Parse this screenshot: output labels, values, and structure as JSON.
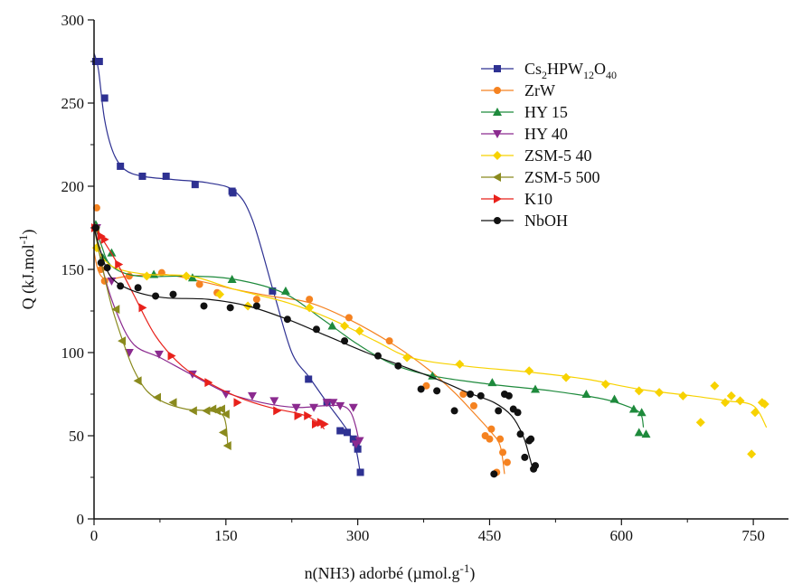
{
  "chart_data": {
    "type": "scatter",
    "title": "",
    "xlabel": "n(NH3) adorbé (µmol.g",
    "xlabel_sup": "-1",
    "xlabel_end": ")",
    "ylabel": "Q (kJ.mol",
    "ylabel_sup": "-1",
    "ylabel_end": ")",
    "xlim": [
      0,
      790
    ],
    "ylim": [
      0,
      300
    ],
    "xticks": [
      0,
      150,
      300,
      450,
      600,
      750
    ],
    "yticks": [
      0,
      50,
      100,
      150,
      200,
      250,
      300
    ],
    "grid": false,
    "legend_position": "top-right",
    "series": [
      {
        "name": "Cs2HPW12O40",
        "name_parts": [
          "Cs",
          "2",
          "HPW",
          "12",
          "O",
          "40"
        ],
        "color": "#2e3192",
        "marker": "square",
        "points": [
          [
            2,
            275
          ],
          [
            6,
            275
          ],
          [
            12,
            253
          ],
          [
            30,
            212
          ],
          [
            55,
            206
          ],
          [
            82,
            206
          ],
          [
            115,
            201
          ],
          [
            157,
            197
          ],
          [
            158,
            196
          ],
          [
            203,
            137
          ],
          [
            244,
            84
          ],
          [
            265,
            70
          ],
          [
            280,
            53
          ],
          [
            288,
            52
          ],
          [
            295,
            48
          ],
          [
            298,
            46
          ],
          [
            300,
            42
          ],
          [
            303,
            28
          ]
        ],
        "curve": [
          [
            0,
            280
          ],
          [
            5,
            270
          ],
          [
            12,
            240
          ],
          [
            22,
            220
          ],
          [
            35,
            210
          ],
          [
            55,
            206
          ],
          [
            90,
            204
          ],
          [
            130,
            202
          ],
          [
            160,
            197
          ],
          [
            180,
            180
          ],
          [
            205,
            135
          ],
          [
            225,
            100
          ],
          [
            245,
            85
          ],
          [
            265,
            70
          ],
          [
            282,
            58
          ],
          [
            292,
            50
          ],
          [
            298,
            42
          ],
          [
            303,
            27
          ]
        ]
      },
      {
        "name": "ZrW",
        "color": "#f58220",
        "marker": "circle",
        "points": [
          [
            3,
            187
          ],
          [
            8,
            150
          ],
          [
            12,
            143
          ],
          [
            40,
            146
          ],
          [
            77,
            148
          ],
          [
            120,
            141
          ],
          [
            140,
            136
          ],
          [
            185,
            132
          ],
          [
            245,
            132
          ],
          [
            290,
            121
          ],
          [
            336,
            107
          ],
          [
            378,
            80
          ],
          [
            420,
            75
          ],
          [
            432,
            68
          ],
          [
            445,
            50
          ],
          [
            450,
            48
          ],
          [
            452,
            54
          ],
          [
            458,
            28
          ],
          [
            462,
            48
          ],
          [
            465,
            40
          ],
          [
            470,
            34
          ]
        ],
        "curve": [
          [
            0,
            160
          ],
          [
            10,
            145
          ],
          [
            40,
            146
          ],
          [
            80,
            147
          ],
          [
            120,
            143
          ],
          [
            160,
            138
          ],
          [
            200,
            134
          ],
          [
            245,
            130
          ],
          [
            290,
            120
          ],
          [
            340,
            105
          ],
          [
            380,
            90
          ],
          [
            410,
            76
          ],
          [
            435,
            62
          ],
          [
            452,
            52
          ],
          [
            462,
            44
          ],
          [
            467,
            27
          ]
        ]
      },
      {
        "name": "HY 15",
        "color": "#1e8a3c",
        "marker": "triangle-up",
        "points": [
          [
            2,
            177
          ],
          [
            10,
            157
          ],
          [
            20,
            160
          ],
          [
            68,
            147
          ],
          [
            112,
            145
          ],
          [
            157,
            144
          ],
          [
            218,
            137
          ],
          [
            271,
            116
          ],
          [
            385,
            86
          ],
          [
            453,
            82
          ],
          [
            502,
            78
          ],
          [
            560,
            75
          ],
          [
            592,
            72
          ],
          [
            614,
            66
          ],
          [
            620,
            52
          ],
          [
            623,
            64
          ],
          [
            628,
            51
          ]
        ],
        "curve": [
          [
            0,
            178
          ],
          [
            8,
            165
          ],
          [
            20,
            152
          ],
          [
            50,
            146
          ],
          [
            110,
            146
          ],
          [
            160,
            144
          ],
          [
            215,
            136
          ],
          [
            260,
            120
          ],
          [
            300,
            105
          ],
          [
            340,
            93
          ],
          [
            385,
            86
          ],
          [
            450,
            81
          ],
          [
            520,
            77
          ],
          [
            580,
            72
          ],
          [
            610,
            67
          ],
          [
            622,
            63
          ],
          [
            625,
            55
          ]
        ]
      },
      {
        "name": "HY 40",
        "color": "#8b2a8f",
        "marker": "triangle-down",
        "points": [
          [
            3,
            175
          ],
          [
            20,
            143
          ],
          [
            40,
            100
          ],
          [
            74,
            99
          ],
          [
            112,
            87
          ],
          [
            150,
            75
          ],
          [
            180,
            74
          ],
          [
            205,
            71
          ],
          [
            230,
            67
          ],
          [
            250,
            67
          ],
          [
            265,
            70
          ],
          [
            272,
            70
          ],
          [
            280,
            68
          ],
          [
            295,
            67
          ],
          [
            302,
            47
          ],
          [
            298,
            45
          ]
        ],
        "curve": [
          [
            0,
            178
          ],
          [
            10,
            150
          ],
          [
            25,
            125
          ],
          [
            45,
            105
          ],
          [
            75,
            97
          ],
          [
            110,
            87
          ],
          [
            150,
            76
          ],
          [
            190,
            70
          ],
          [
            230,
            67
          ],
          [
            260,
            68
          ],
          [
            282,
            68
          ],
          [
            292,
            64
          ],
          [
            298,
            55
          ],
          [
            302,
            45
          ]
        ]
      },
      {
        "name": "ZSM-5 40",
        "color": "#f7d200",
        "marker": "diamond",
        "points": [
          [
            3,
            163
          ],
          [
            60,
            146
          ],
          [
            105,
            146
          ],
          [
            143,
            135
          ],
          [
            175,
            128
          ],
          [
            245,
            127
          ],
          [
            285,
            116
          ],
          [
            302,
            113
          ],
          [
            356,
            97
          ],
          [
            416,
            93
          ],
          [
            495,
            89
          ],
          [
            537,
            85
          ],
          [
            582,
            81
          ],
          [
            620,
            77
          ],
          [
            643,
            76
          ],
          [
            670,
            74
          ],
          [
            690,
            58
          ],
          [
            706,
            80
          ],
          [
            718,
            70
          ],
          [
            725,
            74
          ],
          [
            735,
            71
          ],
          [
            748,
            39
          ],
          [
            752,
            64
          ],
          [
            760,
            70
          ],
          [
            763,
            69
          ]
        ],
        "curve": [
          [
            0,
            165
          ],
          [
            20,
            152
          ],
          [
            60,
            147
          ],
          [
            110,
            146
          ],
          [
            160,
            138
          ],
          [
            220,
            130
          ],
          [
            270,
            120
          ],
          [
            320,
            107
          ],
          [
            360,
            97
          ],
          [
            420,
            92
          ],
          [
            500,
            88
          ],
          [
            560,
            84
          ],
          [
            620,
            78
          ],
          [
            680,
            74
          ],
          [
            720,
            71
          ],
          [
            750,
            68
          ],
          [
            765,
            55
          ]
        ]
      },
      {
        "name": "ZSM-5 500",
        "color": "#8a8a1e",
        "marker": "triangle-left",
        "points": [
          [
            2,
            174
          ],
          [
            25,
            126
          ],
          [
            32,
            107
          ],
          [
            50,
            83
          ],
          [
            72,
            73
          ],
          [
            90,
            70
          ],
          [
            113,
            65
          ],
          [
            128,
            65
          ],
          [
            135,
            66
          ],
          [
            140,
            65
          ],
          [
            147,
            52
          ],
          [
            145,
            66
          ],
          [
            150,
            63
          ],
          [
            152,
            44
          ]
        ],
        "curve": [
          [
            0,
            175
          ],
          [
            10,
            150
          ],
          [
            20,
            128
          ],
          [
            32,
            108
          ],
          [
            45,
            90
          ],
          [
            60,
            77
          ],
          [
            80,
            70
          ],
          [
            105,
            66
          ],
          [
            130,
            65
          ],
          [
            145,
            63
          ],
          [
            150,
            57
          ],
          [
            152,
            45
          ]
        ]
      },
      {
        "name": "K10",
        "color": "#e8211b",
        "marker": "triangle-right",
        "points": [
          [
            1,
            175
          ],
          [
            8,
            170
          ],
          [
            12,
            168
          ],
          [
            28,
            153
          ],
          [
            55,
            127
          ],
          [
            88,
            98
          ],
          [
            130,
            82
          ],
          [
            163,
            70
          ],
          [
            208,
            65
          ],
          [
            232,
            62
          ],
          [
            243,
            62
          ],
          [
            252,
            57
          ],
          [
            258,
            58
          ],
          [
            262,
            57
          ]
        ],
        "curve": [
          [
            0,
            178
          ],
          [
            10,
            168
          ],
          [
            25,
            155
          ],
          [
            45,
            135
          ],
          [
            70,
            110
          ],
          [
            100,
            92
          ],
          [
            130,
            82
          ],
          [
            165,
            73
          ],
          [
            200,
            67
          ],
          [
            235,
            63
          ],
          [
            252,
            59
          ],
          [
            262,
            54
          ]
        ]
      },
      {
        "name": "NbOH",
        "color": "#111111",
        "marker": "circle",
        "points": [
          [
            2,
            175
          ],
          [
            8,
            154
          ],
          [
            15,
            151
          ],
          [
            30,
            140
          ],
          [
            50,
            139
          ],
          [
            70,
            134
          ],
          [
            90,
            135
          ],
          [
            125,
            128
          ],
          [
            155,
            127
          ],
          [
            185,
            128
          ],
          [
            220,
            120
          ],
          [
            253,
            114
          ],
          [
            285,
            107
          ],
          [
            323,
            98
          ],
          [
            346,
            92
          ],
          [
            372,
            78
          ],
          [
            390,
            77
          ],
          [
            410,
            65
          ],
          [
            428,
            75
          ],
          [
            440,
            74
          ],
          [
            455,
            27
          ],
          [
            460,
            65
          ],
          [
            467,
            75
          ],
          [
            472,
            74
          ],
          [
            477,
            66
          ],
          [
            482,
            64
          ],
          [
            485,
            51
          ],
          [
            490,
            37
          ],
          [
            495,
            47
          ],
          [
            497,
            48
          ],
          [
            500,
            30
          ],
          [
            502,
            32
          ]
        ],
        "curve": [
          [
            0,
            175
          ],
          [
            8,
            160
          ],
          [
            20,
            145
          ],
          [
            45,
            137
          ],
          [
            80,
            133
          ],
          [
            130,
            132
          ],
          [
            175,
            128
          ],
          [
            220,
            120
          ],
          [
            265,
            110
          ],
          [
            310,
            100
          ],
          [
            350,
            92
          ],
          [
            390,
            84
          ],
          [
            425,
            76
          ],
          [
            455,
            70
          ],
          [
            475,
            62
          ],
          [
            488,
            50
          ],
          [
            495,
            38
          ],
          [
            500,
            28
          ]
        ]
      }
    ]
  }
}
